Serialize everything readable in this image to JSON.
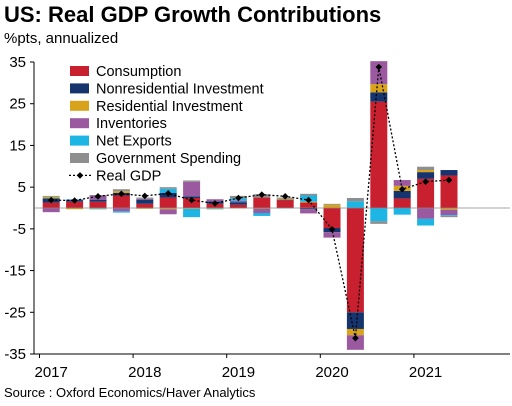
{
  "title": "US: Real GDP Growth Contributions",
  "subtitle": "%pts, annualized",
  "source": "Source : Oxford Economics/Haver Analytics",
  "colors": {
    "consumption": "#c8202f",
    "nonresidential": "#16346e",
    "residential": "#d8a31a",
    "inventories": "#9b5a9f",
    "net_exports": "#1cb5e4",
    "government": "#8e8e8e",
    "gdp": "#000000"
  },
  "chart_data": {
    "type": "bar",
    "stacked": true,
    "title": "US: Real GDP Growth Contributions",
    "subtitle": "%pts, annualized",
    "ylim": [
      -35,
      35
    ],
    "yticks": [
      -35,
      -25,
      -15,
      -5,
      5,
      15,
      25,
      35
    ],
    "xtick_labels": [
      "2017",
      "2018",
      "2019",
      "2020",
      "2021"
    ],
    "legend_position": "upper-left",
    "grid": false,
    "categories": [
      "2017 Q1",
      "2017 Q2",
      "2017 Q3",
      "2017 Q4",
      "2018 Q1",
      "2018 Q2",
      "2018 Q3",
      "2018 Q4",
      "2019 Q1",
      "2019 Q2",
      "2019 Q3",
      "2019 Q4",
      "2020 Q1",
      "2020 Q2",
      "2020 Q3",
      "2020 Q4",
      "2021 Q1",
      "2021 Q2"
    ],
    "series": [
      {
        "key": "consumption",
        "name": "Consumption",
        "values": [
          1.3,
          1.5,
          1.5,
          3.0,
          1.0,
          2.5,
          2.4,
          1.0,
          0.8,
          2.5,
          1.9,
          1.3,
          -4.8,
          -25.0,
          25.5,
          2.3,
          7.0,
          7.8
        ]
      },
      {
        "key": "nonresidential",
        "name": "Nonresidential Investment",
        "values": [
          1.0,
          0.4,
          0.5,
          0.6,
          1.0,
          1.1,
          0.4,
          0.6,
          0.6,
          -0.1,
          0.1,
          -0.3,
          -1.0,
          -4.0,
          2.2,
          1.8,
          1.6,
          1.3
        ]
      },
      {
        "key": "residential",
        "name": "Residential Investment",
        "values": [
          0.4,
          -0.3,
          -0.2,
          0.4,
          -0.2,
          -0.3,
          -0.2,
          -0.2,
          -0.1,
          -0.1,
          0.2,
          0.2,
          0.8,
          -1.5,
          2.0,
          1.2,
          0.5,
          -0.4
        ]
      },
      {
        "key": "inventories",
        "name": "Inventories",
        "values": [
          -1.0,
          0.1,
          1.0,
          -0.8,
          0.2,
          -1.2,
          3.5,
          0.5,
          0.3,
          -1.0,
          0.0,
          -1.0,
          -1.3,
          -3.5,
          5.5,
          1.4,
          -2.6,
          -1.3
        ]
      },
      {
        "key": "net_exports",
        "name": "Net Exports",
        "values": [
          0.1,
          0.1,
          -0.1,
          -0.3,
          0.0,
          1.0,
          -2.0,
          -0.1,
          0.6,
          -0.7,
          -0.1,
          1.5,
          0.0,
          1.6,
          -3.2,
          -1.6,
          -1.6,
          -0.2
        ]
      },
      {
        "key": "government",
        "name": "Government Spending",
        "values": [
          0.1,
          0.0,
          0.1,
          0.5,
          0.3,
          0.4,
          0.3,
          0.0,
          0.6,
          0.8,
          0.3,
          0.4,
          0.2,
          0.8,
          -0.6,
          0.0,
          0.8,
          -0.3
        ]
      }
    ],
    "line_series": {
      "key": "gdp",
      "name": "Real GDP",
      "values": [
        1.9,
        1.8,
        2.8,
        3.4,
        2.9,
        3.5,
        1.9,
        1.1,
        2.4,
        3.2,
        2.8,
        1.9,
        -5.1,
        -31.2,
        33.8,
        4.5,
        6.3,
        6.7
      ]
    }
  }
}
